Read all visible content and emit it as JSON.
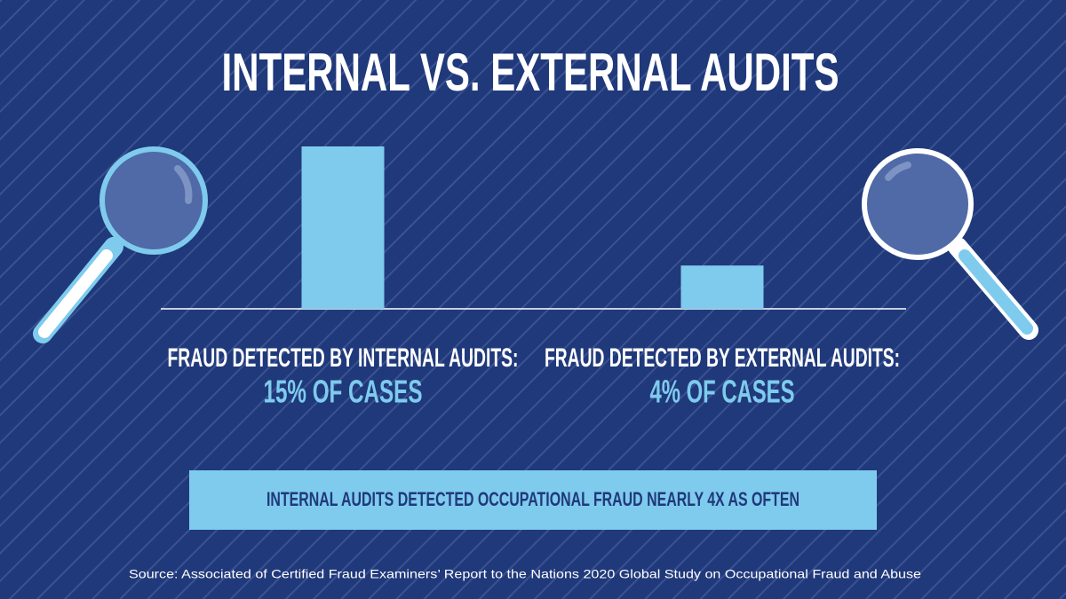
{
  "chart_data": {
    "type": "bar",
    "title": "INTERNAL VS. EXTERNAL AUDITS",
    "categories": [
      "FRAUD DETECTED BY INTERNAL AUDITS:",
      "FRAUD DETECTED BY EXTERNAL AUDITS:"
    ],
    "values": [
      15,
      4
    ],
    "value_labels": [
      "15% OF CASES",
      "4% OF CASES"
    ],
    "color": "#7ecbee",
    "annotation": "INTERNAL AUDITS DETECTED OCCUPATIONAL FRAUD NEARLY 4X AS OFTEN",
    "source": "Source: Associated of Certified Fraud Examiners’ Report to the Nations 2020 Global Study on Occupational Fraud and Abuse"
  }
}
